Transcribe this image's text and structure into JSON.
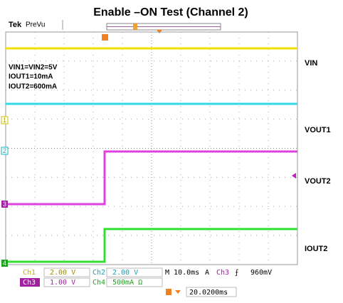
{
  "title": "Enable –ON Test (Channel 2)",
  "scope_brand": "Tek",
  "scope_mode": "PreVu",
  "conditions": [
    "VIN1=VIN2=5V",
    "IOUT1=10mA",
    "IOUT2=600mA"
  ],
  "trace_labels": [
    "VIN",
    "VOUT1",
    "VOUT2",
    "IOUT2"
  ],
  "channel_markers": [
    "1",
    "2",
    "3",
    "4"
  ],
  "readout": {
    "ch1": {
      "name": "Ch1",
      "scale": "2.00 V"
    },
    "ch2": {
      "name": "Ch2",
      "scale": "2.00 V"
    },
    "ch3": {
      "name": "Ch3",
      "scale": "1.00 V"
    },
    "ch4": {
      "name": "Ch4",
      "scale": "500mA Ω"
    },
    "timebase": "M 10.0ms",
    "trigger_mode": "A",
    "trigger_source": "Ch3",
    "trigger_slope": "⨍",
    "trigger_level": "960mV",
    "trigger_position": "20.0200ms"
  }
}
